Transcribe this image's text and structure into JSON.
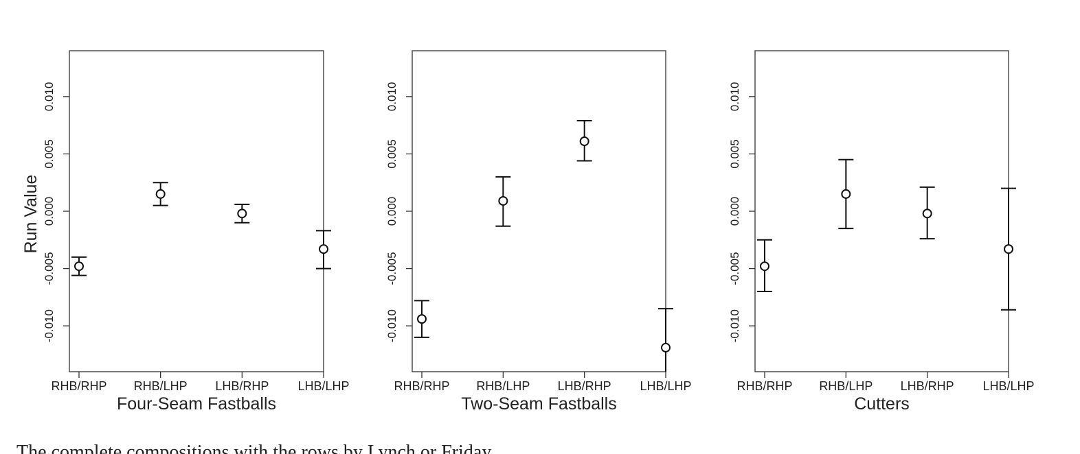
{
  "chart_data": [
    {
      "type": "scatter",
      "xlabel": "Four-Seam Fastballs",
      "ylabel": "Run Value",
      "categories": [
        "RHB/RHP",
        "RHB/LHP",
        "LHB/RHP",
        "LHB/LHP"
      ],
      "yticks": [
        "-0.010",
        "-0.005",
        "0.000",
        "0.005",
        "0.010"
      ],
      "ylim": [
        -0.014,
        0.014
      ],
      "values": [
        -0.0048,
        0.0015,
        -0.0002,
        -0.0033
      ],
      "lower": [
        -0.0056,
        0.0005,
        -0.001,
        -0.005
      ],
      "upper": [
        -0.004,
        0.0025,
        0.0006,
        -0.0017
      ]
    },
    {
      "type": "scatter",
      "xlabel": "Two-Seam Fastballs",
      "ylabel": "",
      "categories": [
        "RHB/RHP",
        "RHB/LHP",
        "LHB/RHP",
        "LHB/LHP"
      ],
      "yticks": [
        "-0.010",
        "-0.005",
        "0.000",
        "0.005",
        "0.010"
      ],
      "ylim": [
        -0.014,
        0.014
      ],
      "values": [
        -0.0094,
        0.0009,
        0.0061,
        -0.0119
      ],
      "lower": [
        -0.011,
        -0.0013,
        0.0044,
        -0.0145
      ],
      "upper": [
        -0.0078,
        0.003,
        0.0079,
        -0.0085
      ]
    },
    {
      "type": "scatter",
      "xlabel": "Cutters",
      "ylabel": "",
      "categories": [
        "RHB/RHP",
        "RHB/LHP",
        "LHB/RHP",
        "LHB/LHP"
      ],
      "yticks": [
        "-0.010",
        "-0.005",
        "0.000",
        "0.005",
        "0.010"
      ],
      "ylim": [
        -0.014,
        0.014
      ],
      "values": [
        -0.0048,
        0.0015,
        -0.0002,
        -0.0033
      ],
      "lower": [
        -0.007,
        -0.0015,
        -0.0024,
        -0.0086
      ],
      "upper": [
        -0.0025,
        0.0045,
        0.0021,
        0.002
      ]
    }
  ],
  "caption": "The complete compositions with the rows by Lynch or Friday"
}
